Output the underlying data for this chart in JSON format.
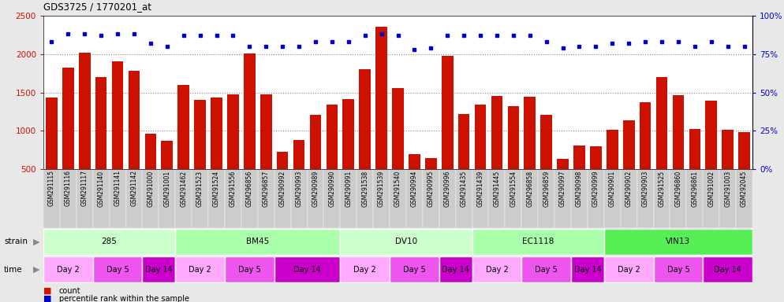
{
  "title": "GDS3725 / 1770201_at",
  "samples": [
    "GSM291115",
    "GSM291116",
    "GSM291117",
    "GSM291140",
    "GSM291141",
    "GSM291142",
    "GSM291000",
    "GSM291001",
    "GSM291462",
    "GSM291523",
    "GSM291524",
    "GSM291556",
    "GSM296856",
    "GSM296857",
    "GSM290992",
    "GSM290993",
    "GSM290989",
    "GSM290990",
    "GSM290991",
    "GSM291538",
    "GSM291539",
    "GSM291540",
    "GSM290994",
    "GSM290995",
    "GSM290996",
    "GSM291435",
    "GSM291439",
    "GSM291445",
    "GSM291554",
    "GSM296858",
    "GSM296859",
    "GSM290997",
    "GSM290998",
    "GSM290999",
    "GSM290901",
    "GSM290902",
    "GSM290903",
    "GSM291525",
    "GSM296860",
    "GSM296861",
    "GSM291002",
    "GSM291003",
    "GSM292045"
  ],
  "counts": [
    1430,
    1820,
    2020,
    1700,
    1910,
    1780,
    960,
    870,
    1600,
    1400,
    1430,
    1470,
    2010,
    1470,
    730,
    880,
    1210,
    1340,
    1410,
    1800,
    2360,
    1560,
    700,
    640,
    1980,
    1220,
    1340,
    1450,
    1320,
    1440,
    1210,
    630,
    810,
    800,
    1010,
    1140,
    1370,
    1700,
    1460,
    1020,
    1390,
    1010,
    980
  ],
  "percentile": [
    83,
    88,
    88,
    87,
    88,
    88,
    82,
    80,
    87,
    87,
    87,
    87,
    80,
    80,
    80,
    80,
    83,
    83,
    83,
    87,
    88,
    87,
    78,
    79,
    87,
    87,
    87,
    87,
    87,
    87,
    83,
    79,
    80,
    80,
    82,
    82,
    83,
    83,
    83,
    80,
    83,
    80,
    80
  ],
  "strains": [
    {
      "label": "285",
      "start": 0,
      "end": 7,
      "color": "#ccffcc"
    },
    {
      "label": "BM45",
      "start": 8,
      "end": 17,
      "color": "#aaffaa"
    },
    {
      "label": "DV10",
      "start": 18,
      "end": 25,
      "color": "#ccffcc"
    },
    {
      "label": "EC1118",
      "start": 26,
      "end": 33,
      "color": "#aaffaa"
    },
    {
      "label": "VIN13",
      "start": 34,
      "end": 42,
      "color": "#55ee55"
    }
  ],
  "times": [
    {
      "label": "Day 2",
      "start": 0,
      "end": 2
    },
    {
      "label": "Day 5",
      "start": 3,
      "end": 5
    },
    {
      "label": "Day 14",
      "start": 6,
      "end": 7
    },
    {
      "label": "Day 2",
      "start": 8,
      "end": 10
    },
    {
      "label": "Day 5",
      "start": 11,
      "end": 13
    },
    {
      "label": "Day 14",
      "start": 14,
      "end": 17
    },
    {
      "label": "Day 2",
      "start": 18,
      "end": 20
    },
    {
      "label": "Day 5",
      "start": 21,
      "end": 23
    },
    {
      "label": "Day 14",
      "start": 24,
      "end": 25
    },
    {
      "label": "Day 2",
      "start": 26,
      "end": 28
    },
    {
      "label": "Day 5",
      "start": 29,
      "end": 31
    },
    {
      "label": "Day 14",
      "start": 32,
      "end": 33
    },
    {
      "label": "Day 2",
      "start": 34,
      "end": 36
    },
    {
      "label": "Day 5",
      "start": 37,
      "end": 39
    },
    {
      "label": "Day 14",
      "start": 40,
      "end": 42
    }
  ],
  "time_colors": {
    "Day 2": "#ffaaff",
    "Day 5": "#ee55ee",
    "Day 14": "#cc00cc"
  },
  "bar_color": "#cc1100",
  "dot_color": "#0000cc",
  "ylim_left": [
    500,
    2500
  ],
  "ylim_right": [
    0,
    100
  ],
  "yticks_left": [
    500,
    1000,
    1500,
    2000,
    2500
  ],
  "yticks_right": [
    0,
    25,
    50,
    75,
    100
  ],
  "grid_values": [
    1000,
    1500,
    2000
  ],
  "fig_bg": "#e8e8e8",
  "plot_bg": "#ffffff",
  "xtick_bg": "#d0d0d0"
}
